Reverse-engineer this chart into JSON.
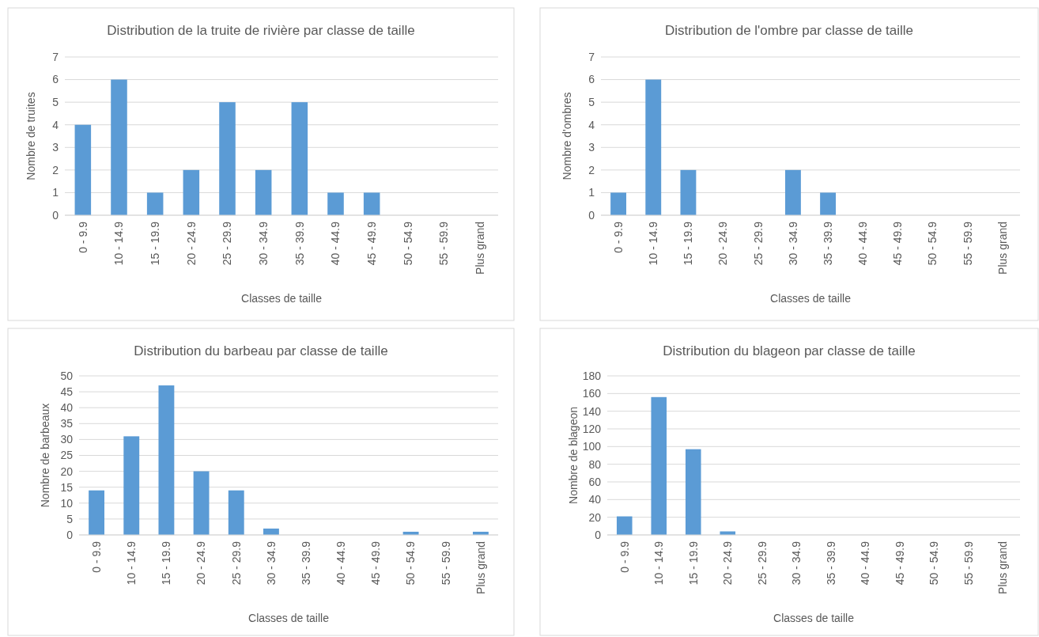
{
  "chart_data": [
    {
      "type": "bar",
      "title": "Distribution de la truite de rivière par classe de taille",
      "xlabel": "Classes de taille",
      "ylabel": "Nombre de truites",
      "categories": [
        "0 - 9.9",
        "10 - 14.9",
        "15 - 19.9",
        "20 - 24.9",
        "25 - 29.9",
        "30 - 34.9",
        "35 - 39.9",
        "40 - 44.9",
        "45 - 49.9",
        "50 - 54.9",
        "55 - 59.9",
        "Plus grand"
      ],
      "values": [
        4,
        6,
        1,
        2,
        5,
        2,
        5,
        1,
        1,
        0,
        0,
        0
      ],
      "color": "#5b9bd5",
      "ylim": [
        0,
        7
      ],
      "yticks": [
        0,
        1,
        2,
        3,
        4,
        5,
        6,
        7
      ],
      "grid": "y"
    },
    {
      "type": "bar",
      "title": "Distribution de l'ombre par classe de taille",
      "xlabel": "Classes de taille",
      "ylabel": "Nombre d'ombres",
      "categories": [
        "0 - 9.9",
        "10 - 14.9",
        "15 - 19.9",
        "20 - 24.9",
        "25 - 29.9",
        "30 - 34.9",
        "35 - 39.9",
        "40 - 44.9",
        "45 - 49.9",
        "50 - 54.9",
        "55 - 59.9",
        "Plus grand"
      ],
      "values": [
        1,
        6,
        2,
        0,
        0,
        2,
        1,
        0,
        0,
        0,
        0,
        0
      ],
      "color": "#5b9bd5",
      "ylim": [
        0,
        7
      ],
      "yticks": [
        0,
        1,
        2,
        3,
        4,
        5,
        6,
        7
      ],
      "grid": "y"
    },
    {
      "type": "bar",
      "title": "Distribution du barbeau par classe de taille",
      "xlabel": "Classes de taille",
      "ylabel": "Nombre de barbeaux",
      "categories": [
        "0 - 9.9",
        "10 - 14.9",
        "15 - 19.9",
        "20 - 24.9",
        "25 - 29.9",
        "30 - 34.9",
        "35 - 39.9",
        "40 - 44.9",
        "45 - 49.9",
        "50 - 54.9",
        "55 - 59.9",
        "Plus grand"
      ],
      "values": [
        14,
        31,
        47,
        20,
        14,
        2,
        0,
        0,
        0,
        1,
        0,
        1
      ],
      "color": "#5b9bd5",
      "ylim": [
        0,
        50
      ],
      "yticks": [
        0,
        5,
        10,
        15,
        20,
        25,
        30,
        35,
        40,
        45,
        50
      ],
      "grid": "y"
    },
    {
      "type": "bar",
      "title": "Distribution du blageon par classe de taille",
      "xlabel": "Classes de taille",
      "ylabel": "Nombre de blageon",
      "categories": [
        "0 - 9.9",
        "10 - 14.9",
        "15 - 19.9",
        "20 - 24.9",
        "25 - 29.9",
        "30 - 34.9",
        "35 - 39.9",
        "40 - 44.9",
        "45 - 49.9",
        "50 - 54.9",
        "55 - 59.9",
        "Plus grand"
      ],
      "values": [
        21,
        156,
        97,
        4,
        0,
        0,
        0,
        0,
        0,
        0,
        0,
        0
      ],
      "color": "#5b9bd5",
      "ylim": [
        0,
        180
      ],
      "yticks": [
        0,
        20,
        40,
        60,
        80,
        100,
        120,
        140,
        160,
        180
      ],
      "grid": "y"
    }
  ]
}
